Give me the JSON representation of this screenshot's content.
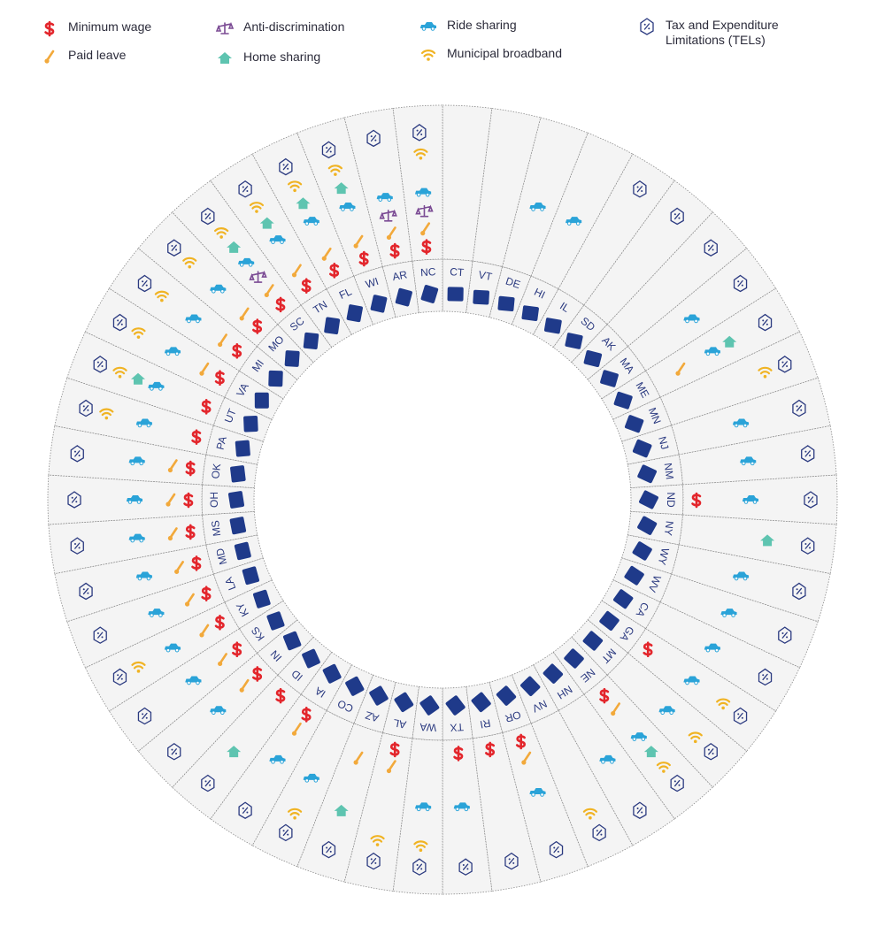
{
  "legend": [
    {
      "label": "Minimum wage",
      "color": "#e3262c"
    },
    {
      "label": "Paid leave",
      "color": "#f2a93b"
    },
    {
      "label": "Anti-discrimination",
      "color": "#7b4b94"
    },
    {
      "label": "Home sharing",
      "color": "#5ec4b0"
    },
    {
      "label": "Ride sharing",
      "color": "#2aa3d8"
    },
    {
      "label": "Municipal broadband",
      "color": "#f0b323"
    },
    {
      "label": "Tax and Expenditure Limitations (TELs)",
      "color": "#2b3a80"
    }
  ],
  "states": [
    {
      "abbr": "CT",
      "policies": []
    },
    {
      "abbr": "VT",
      "policies": []
    },
    {
      "abbr": "DE",
      "policies": [
        4
      ]
    },
    {
      "abbr": "HI",
      "policies": [
        4
      ]
    },
    {
      "abbr": "IL",
      "policies": [
        6
      ]
    },
    {
      "abbr": "SD",
      "policies": [
        6
      ]
    },
    {
      "abbr": "AK",
      "policies": [
        6
      ]
    },
    {
      "abbr": "MA",
      "policies": [
        4,
        6
      ]
    },
    {
      "abbr": "ME",
      "policies": [
        1,
        4,
        3,
        6
      ]
    },
    {
      "abbr": "MN",
      "policies": [
        5,
        6
      ]
    },
    {
      "abbr": "NJ",
      "policies": [
        4,
        6
      ]
    },
    {
      "abbr": "NM",
      "policies": [
        4,
        6
      ]
    },
    {
      "abbr": "ND",
      "policies": [
        0,
        4,
        6
      ]
    },
    {
      "abbr": "NY",
      "policies": [
        3,
        6
      ]
    },
    {
      "abbr": "WY",
      "policies": [
        4,
        6
      ]
    },
    {
      "abbr": "WV",
      "policies": [
        4,
        6
      ]
    },
    {
      "abbr": "CA",
      "policies": [
        4,
        6
      ]
    },
    {
      "abbr": "GA",
      "policies": [
        0,
        4,
        5,
        6
      ]
    },
    {
      "abbr": "MT",
      "policies": [
        4,
        5,
        6
      ]
    },
    {
      "abbr": "NE",
      "policies": [
        0,
        1,
        4,
        3,
        5,
        6
      ]
    },
    {
      "abbr": "NH",
      "policies": [
        4,
        6
      ]
    },
    {
      "abbr": "NV",
      "policies": [
        5,
        6
      ]
    },
    {
      "abbr": "OR",
      "policies": [
        0,
        1,
        4,
        6
      ]
    },
    {
      "abbr": "RI",
      "policies": [
        0,
        6
      ]
    },
    {
      "abbr": "TX",
      "policies": [
        0,
        4,
        6
      ]
    },
    {
      "abbr": "WA",
      "policies": [
        4,
        5,
        6
      ]
    },
    {
      "abbr": "AL",
      "policies": [
        0,
        1,
        5,
        6
      ]
    },
    {
      "abbr": "AZ",
      "policies": [
        1,
        3,
        6
      ]
    },
    {
      "abbr": "CO",
      "policies": [
        4,
        5,
        6
      ]
    },
    {
      "abbr": "IA",
      "policies": [
        0,
        1,
        4,
        6
      ]
    },
    {
      "abbr": "ID",
      "policies": [
        0,
        3,
        6
      ]
    },
    {
      "abbr": "IN",
      "policies": [
        0,
        1,
        4,
        6
      ]
    },
    {
      "abbr": "KS",
      "policies": [
        0,
        1,
        4,
        6
      ]
    },
    {
      "abbr": "KY",
      "policies": [
        0,
        1,
        4,
        5,
        6
      ]
    },
    {
      "abbr": "LA",
      "policies": [
        0,
        1,
        4,
        6
      ]
    },
    {
      "abbr": "MD",
      "policies": [
        0,
        1,
        4,
        6
      ]
    },
    {
      "abbr": "MS",
      "policies": [
        0,
        1,
        4,
        6
      ]
    },
    {
      "abbr": "OH",
      "policies": [
        0,
        1,
        4,
        6
      ]
    },
    {
      "abbr": "OK",
      "policies": [
        0,
        1,
        4,
        6
      ]
    },
    {
      "abbr": "PA",
      "policies": [
        0,
        4,
        5,
        6
      ]
    },
    {
      "abbr": "UT",
      "policies": [
        0,
        4,
        3,
        5,
        6
      ]
    },
    {
      "abbr": "VA",
      "policies": [
        0,
        1,
        4,
        5,
        6
      ]
    },
    {
      "abbr": "MI",
      "policies": [
        0,
        1,
        4,
        5,
        6
      ]
    },
    {
      "abbr": "MO",
      "policies": [
        0,
        1,
        4,
        5,
        6
      ]
    },
    {
      "abbr": "SC",
      "policies": [
        0,
        1,
        2,
        4,
        3,
        5,
        6
      ]
    },
    {
      "abbr": "TN",
      "policies": [
        0,
        1,
        4,
        3,
        5,
        6
      ]
    },
    {
      "abbr": "FL",
      "policies": [
        0,
        1,
        4,
        3,
        5,
        6
      ]
    },
    {
      "abbr": "WI",
      "policies": [
        0,
        1,
        4,
        3,
        5,
        6
      ]
    },
    {
      "abbr": "AR",
      "policies": [
        0,
        1,
        2,
        4,
        6
      ]
    },
    {
      "abbr": "NC",
      "policies": [
        0,
        1,
        2,
        4,
        5,
        6
      ]
    }
  ]
}
